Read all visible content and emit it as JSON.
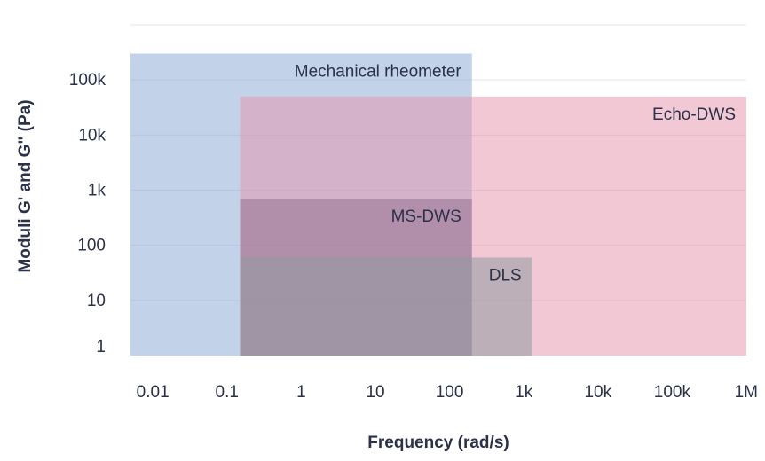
{
  "chart_data": {
    "type": "range-region",
    "title": "",
    "xlabel": "Frequency (rad/s)",
    "ylabel": "Moduli G' and G\" (Pa)",
    "x_scale": "log",
    "y_scale": "log",
    "xlim": [
      0.005,
      1000000
    ],
    "ylim": [
      1,
      1000000
    ],
    "x_ticks": [
      {
        "value": 0.01,
        "label": "0.01"
      },
      {
        "value": 0.1,
        "label": "0.1"
      },
      {
        "value": 1,
        "label": "1"
      },
      {
        "value": 10,
        "label": "10"
      },
      {
        "value": 100,
        "label": "100"
      },
      {
        "value": 1000,
        "label": "1k"
      },
      {
        "value": 10000,
        "label": "10k"
      },
      {
        "value": 100000,
        "label": "100k"
      },
      {
        "value": 1000000,
        "label": "1M"
      }
    ],
    "y_ticks": [
      {
        "value": 1,
        "label": "1"
      },
      {
        "value": 10,
        "label": "10"
      },
      {
        "value": 100,
        "label": "100"
      },
      {
        "value": 1000,
        "label": "1k"
      },
      {
        "value": 10000,
        "label": "10k"
      },
      {
        "value": 100000,
        "label": "100k"
      }
    ],
    "regions": [
      {
        "name": "Mechanical rheometer",
        "x": [
          0.005,
          200
        ],
        "y": [
          1,
          300000
        ],
        "color": "#8aa8d5",
        "opacity": 0.52,
        "label_anchor": "top-right"
      },
      {
        "name": "Echo-DWS",
        "x": [
          0.15,
          1000000
        ],
        "y": [
          1,
          50000
        ],
        "color": "#e592aa",
        "opacity": 0.5,
        "label_anchor": "top-right"
      },
      {
        "name": "MS-DWS",
        "x": [
          0.15,
          200
        ],
        "y": [
          1,
          700
        ],
        "color": "#7c5a7c",
        "opacity": 0.4,
        "label_anchor": "top-right"
      },
      {
        "name": "DLS",
        "x": [
          0.15,
          1300
        ],
        "y": [
          1,
          60
        ],
        "color": "#8f9b9f",
        "opacity": 0.55,
        "label_anchor": "top-right"
      }
    ]
  }
}
